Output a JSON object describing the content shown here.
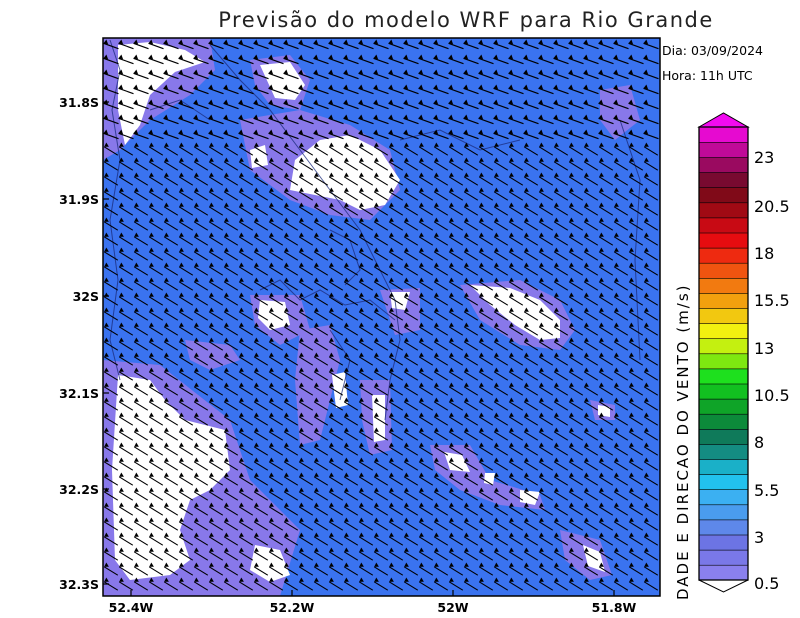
{
  "title": "Previsão do modelo WRF para Rio Grande",
  "date_label": "Dia: 03/09/2024",
  "time_label": "Hora: 11h UTC",
  "colorbar": {
    "title": "DADE E DIRECAO DO VENTO (m/s)",
    "labels": [
      "23",
      "20.5",
      "18",
      "15.5",
      "13",
      "10.5",
      "8",
      "5.5",
      "3",
      "0.5"
    ],
    "colors": [
      "#ffffff",
      "#8a80ee",
      "#7a78e8",
      "#6c74e4",
      "#5e88ea",
      "#4a9cee",
      "#3bb0f2",
      "#22c2ee",
      "#1ab0c8",
      "#148c82",
      "#0f7a5a",
      "#0c8a3a",
      "#0fa428",
      "#12c020",
      "#1ee01e",
      "#7ee810",
      "#c4f010",
      "#f2f010",
      "#f2c810",
      "#f2a00e",
      "#f27a10",
      "#f05410",
      "#ee2a10",
      "#e60c10",
      "#c80a14",
      "#a00a14",
      "#800a18",
      "#780a30",
      "#9a0a60",
      "#c00a98",
      "#e60ad0",
      "#f20af0"
    ]
  },
  "map": {
    "y_ticks": [
      "31.8S",
      "31.9S",
      "32S",
      "32.1S",
      "32.2S",
      "32.3S"
    ],
    "x_ticks": [
      "52.4W",
      "52.2W",
      "52W",
      "51.8W"
    ],
    "palette": {
      "dominant": "#3a73f0",
      "mid": "#5a80ee",
      "light": "#8878ea",
      "calm": "#ffffff"
    }
  }
}
